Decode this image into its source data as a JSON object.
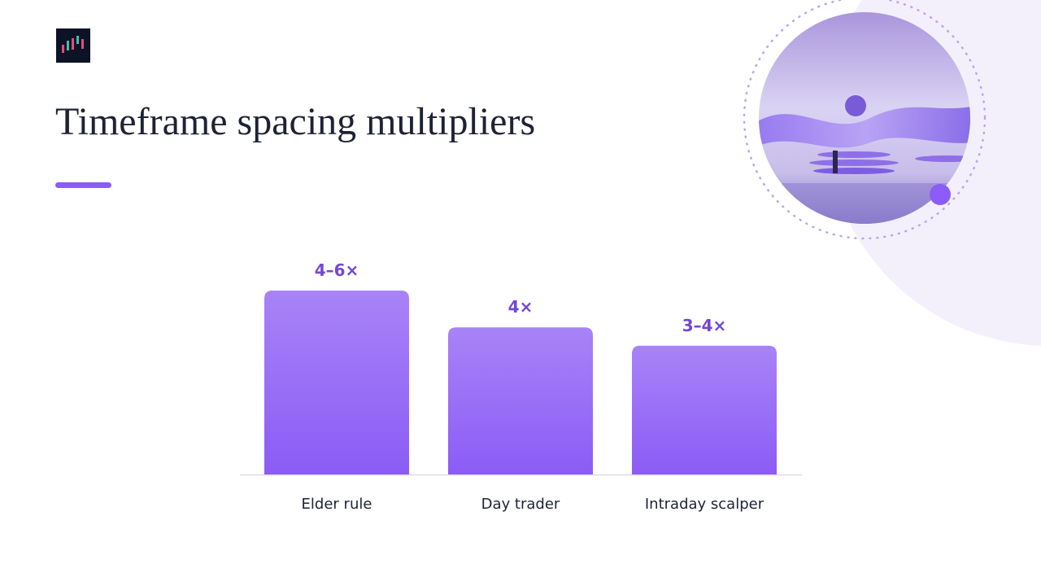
{
  "chart_data": {
    "type": "bar",
    "title": "Timeframe spacing multipliers",
    "categories": [
      "Elder rule",
      "Day trader",
      "Intraday scalper"
    ],
    "values": [
      5,
      4,
      3.5
    ],
    "value_labels": [
      "4–6×",
      "4×",
      "3–4×"
    ],
    "color": "#8b5cf6"
  }
}
